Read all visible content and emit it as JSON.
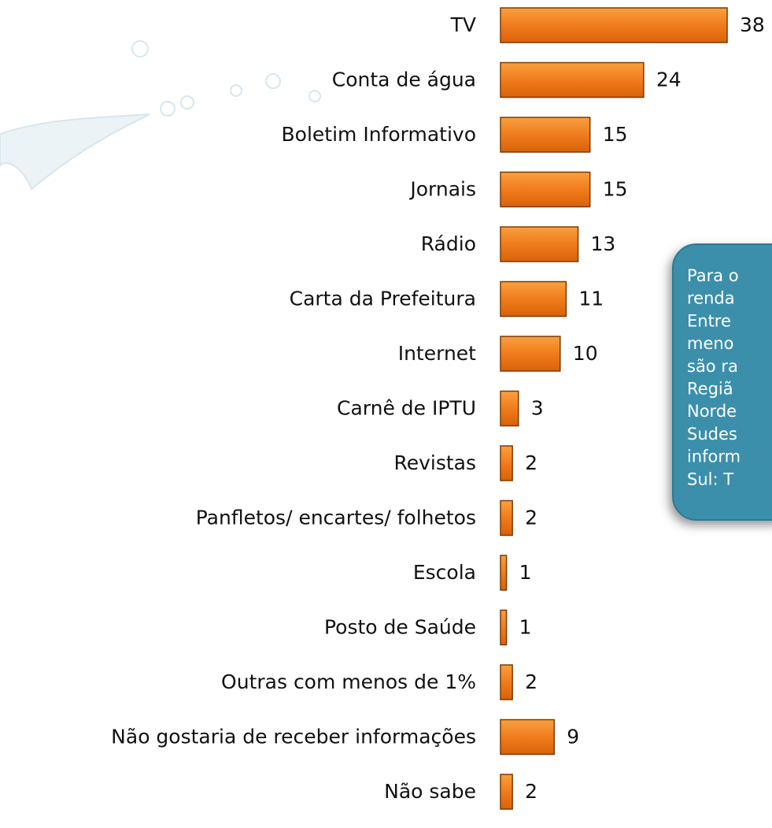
{
  "chart_data": {
    "type": "bar",
    "orientation": "horizontal",
    "categories": [
      "TV",
      "Conta de água",
      "Boletim Informativo",
      "Jornais",
      "Rádio",
      "Carta da Prefeitura",
      "Internet",
      "Carnê de IPTU",
      "Revistas",
      "Panfletos/ encartes/ folhetos",
      "Escola",
      "Posto de Saúde",
      "Outras com menos de 1%",
      "Não gostaria de receber informações",
      "Não sabe"
    ],
    "values": [
      38,
      24,
      15,
      15,
      13,
      11,
      10,
      3,
      2,
      2,
      1,
      1,
      2,
      9,
      2
    ],
    "color": "#f07c1c",
    "callout": [
      "Para o",
      "renda",
      "Entre",
      "meno",
      "são ra",
      "Regiã",
      "Norde",
      "Sudes",
      "inform",
      "Sul: T"
    ]
  }
}
